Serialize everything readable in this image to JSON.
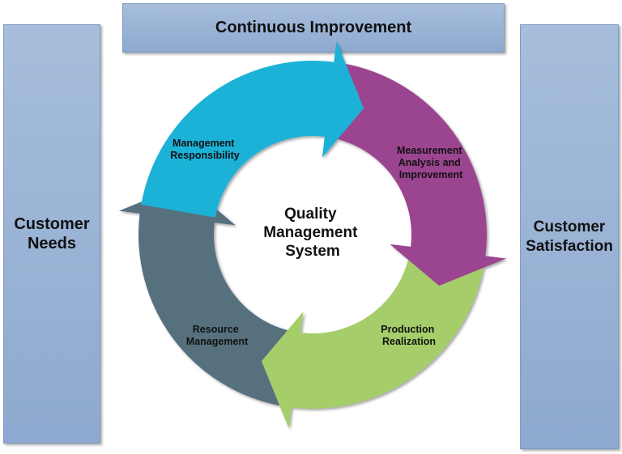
{
  "top_box": {
    "label": "Continuous Improvement"
  },
  "left_box": {
    "label": "Customer\nNeeds"
  },
  "right_box": {
    "label": "Customer\nSatisfaction"
  },
  "center": {
    "lines": [
      "Quality",
      "Management",
      "System"
    ]
  },
  "segments": [
    {
      "lines": [
        "Management",
        "Responsibility"
      ],
      "color": "#1fb2d8"
    },
    {
      "lines": [
        "Measurement",
        "Analysis and",
        "Improvement"
      ],
      "color": "#9b4590"
    },
    {
      "lines": [
        "Production",
        "Realization"
      ],
      "color": "#a5cd6a"
    },
    {
      "lines": [
        "Resource",
        "Management"
      ],
      "color": "#566f7e"
    }
  ]
}
